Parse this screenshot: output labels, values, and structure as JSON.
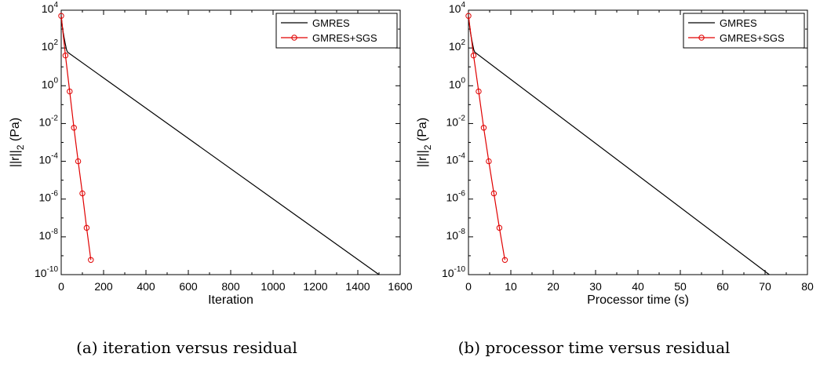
{
  "chart_data": [
    {
      "type": "line",
      "caption": "(a) iteration versus residual",
      "xlabel": "Iteration",
      "ylabel_main": "||r||",
      "ylabel_sub": "2",
      "ylabel_unit": "(Pa)",
      "xlim": [
        0,
        1600
      ],
      "ylim": [
        1e-10,
        10000
      ],
      "yscale": "log",
      "xticks": [
        0,
        200,
        400,
        600,
        800,
        1000,
        1200,
        1400,
        1600
      ],
      "xminor": [
        100,
        300,
        500,
        700,
        900,
        1100,
        1300,
        1500
      ],
      "yticks_exp": [
        -10,
        -8,
        -6,
        -4,
        -2,
        0,
        2,
        4
      ],
      "grid": false,
      "legend_position": "top-right",
      "series": [
        {
          "name": "GMRES",
          "color": "#000000",
          "marker": "none",
          "x": [
            0,
            5,
            10,
            15,
            20,
            25,
            30,
            1500
          ],
          "y": [
            5000,
            1500,
            600,
            300,
            150,
            80,
            60,
            1e-10
          ]
        },
        {
          "name": "GMRES+SGS",
          "color": "#e00000",
          "marker": "circle",
          "x": [
            0,
            20,
            40,
            60,
            80,
            100,
            120,
            140
          ],
          "y": [
            5000,
            40,
            0.5,
            0.006,
            0.0001,
            2e-06,
            3e-08,
            6e-10
          ]
        }
      ]
    },
    {
      "type": "line",
      "caption": "(b) processor time versus residual",
      "xlabel": "Processor time (s)",
      "ylabel_main": "||r||",
      "ylabel_sub": "2",
      "ylabel_unit": "(Pa)",
      "xlim": [
        0,
        80
      ],
      "ylim": [
        1e-10,
        10000
      ],
      "yscale": "log",
      "xticks": [
        0,
        10,
        20,
        30,
        40,
        50,
        60,
        70,
        80
      ],
      "xminor": [
        5,
        15,
        25,
        35,
        45,
        55,
        65,
        75
      ],
      "yticks_exp": [
        -10,
        -8,
        -6,
        -4,
        -2,
        0,
        2,
        4
      ],
      "grid": false,
      "legend_position": "top-right",
      "series": [
        {
          "name": "GMRES",
          "color": "#000000",
          "marker": "none",
          "x": [
            0,
            0.25,
            0.5,
            0.75,
            1.0,
            1.25,
            1.5,
            71
          ],
          "y": [
            5000,
            1500,
            600,
            300,
            150,
            80,
            60,
            1e-10
          ]
        },
        {
          "name": "GMRES+SGS",
          "color": "#e00000",
          "marker": "circle",
          "x": [
            0,
            1.2,
            2.4,
            3.6,
            4.8,
            6.0,
            7.3,
            8.6
          ],
          "y": [
            5000,
            40,
            0.5,
            0.006,
            0.0001,
            2e-06,
            3e-08,
            6e-10
          ]
        }
      ]
    }
  ]
}
